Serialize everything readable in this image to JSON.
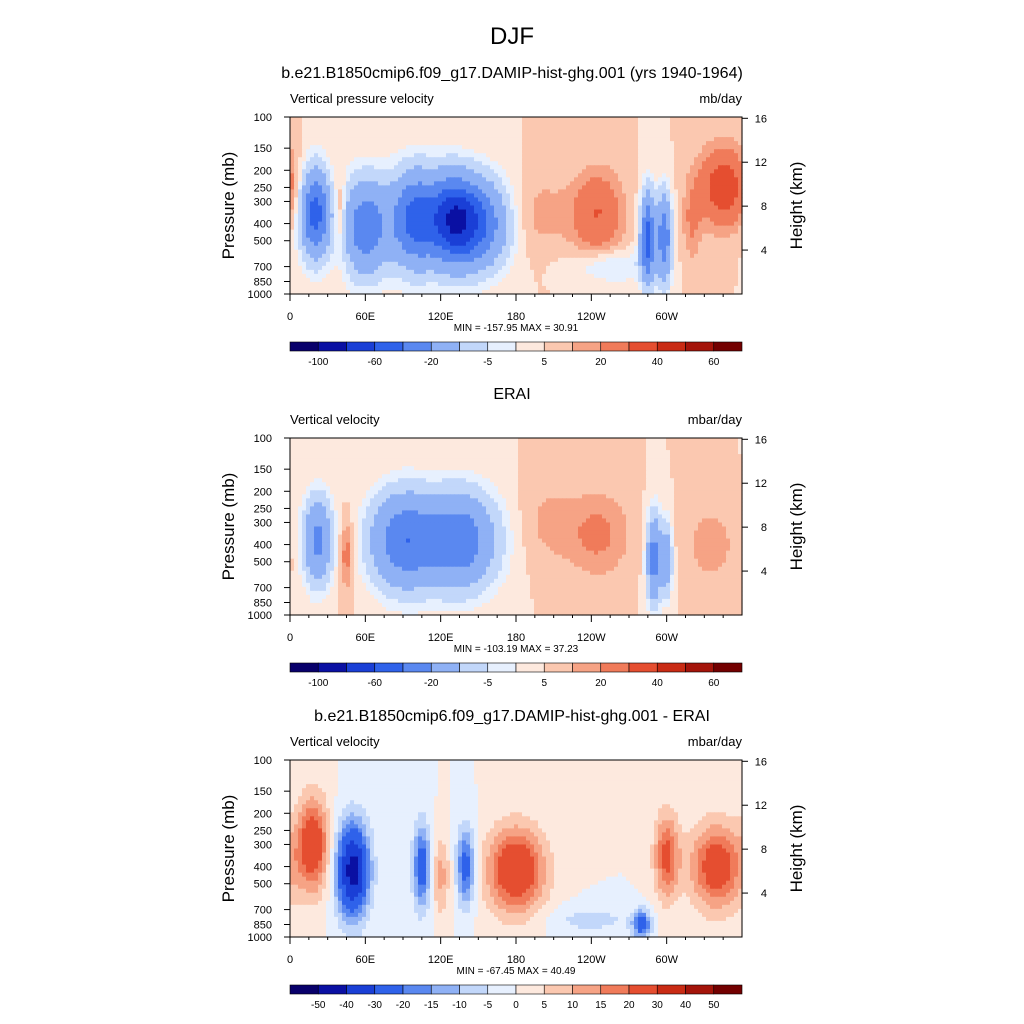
{
  "figure": {
    "title": "DJF"
  },
  "colors": {
    "blue_to_red": [
      "#08006b",
      "#0a10a3",
      "#1a3fd6",
      "#2f62ea",
      "#5a88f0",
      "#8fb1f5",
      "#c2d7fa",
      "#e7f0fe",
      "#fde9de",
      "#fbc8b0",
      "#f6a385",
      "#f07b5a",
      "#e54e30",
      "#c92b14",
      "#a4140a",
      "#730000"
    ]
  },
  "chart_data": [
    {
      "type": "heatmap",
      "title": "b.e21.B1850cmip6.f09_g17.DAMIP-hist-ghg.001 (yrs 1940-1964)",
      "left_label": "Vertical pressure velocity",
      "right_label": "mb/day",
      "ylabel": "Pressure (mb)",
      "y2label": "Height (km)",
      "x_ticks": [
        "0",
        "60E",
        "120E",
        "180",
        "120W",
        "60W"
      ],
      "x_tick_values": [
        0,
        60,
        120,
        180,
        240,
        300
      ],
      "xlim": [
        0,
        360
      ],
      "y_ticks": [
        "100",
        "150",
        "200",
        "250",
        "300",
        "400",
        "500",
        "700",
        "850",
        "1000"
      ],
      "y_tick_values": [
        100,
        150,
        200,
        250,
        300,
        400,
        500,
        700,
        850,
        1000
      ],
      "ylim": [
        1000,
        100
      ],
      "y_log": true,
      "y2_ticks": [
        "4",
        "8",
        "12",
        "16"
      ],
      "y2_tick_values": [
        4,
        8,
        12,
        16
      ],
      "stats": "MIN = -157.95  MAX =  30.91",
      "min": -157.95,
      "max": 30.91,
      "colorbar_labels": [
        "-100",
        "-60",
        "-20",
        "-5",
        "5",
        "20",
        "40",
        "60"
      ],
      "features": [
        {
          "lon": 20,
          "p": 350,
          "w": 8,
          "h": 0.55,
          "v": -70
        },
        {
          "lon": 40,
          "p": 350,
          "w": 3,
          "h": 0.45,
          "v": 15
        },
        {
          "lon": 60,
          "p": 420,
          "w": 12,
          "h": 0.6,
          "v": -55
        },
        {
          "lon": 100,
          "p": 380,
          "w": 14,
          "h": 0.6,
          "v": -70
        },
        {
          "lon": 130,
          "p": 380,
          "w": 12,
          "h": 0.55,
          "v": -75
        },
        {
          "lon": 150,
          "p": 400,
          "w": 16,
          "h": 0.55,
          "v": -60
        },
        {
          "lon": 200,
          "p": 350,
          "w": 18,
          "h": 0.5,
          "v": 7
        },
        {
          "lon": 245,
          "p": 350,
          "w": 14,
          "h": 0.55,
          "v": 20
        },
        {
          "lon": 255,
          "p": 700,
          "w": 22,
          "h": 0.22,
          "v": -12
        },
        {
          "lon": 285,
          "p": 480,
          "w": 4,
          "h": 0.55,
          "v": -70
        },
        {
          "lon": 298,
          "p": 480,
          "w": 4,
          "h": 0.55,
          "v": -55
        },
        {
          "lon": 320,
          "p": 400,
          "w": 5,
          "h": 0.5,
          "v": 10
        },
        {
          "lon": 345,
          "p": 250,
          "w": 14,
          "h": 0.5,
          "v": 28
        }
      ]
    },
    {
      "type": "heatmap",
      "title": "ERAI",
      "left_label": "Vertical velocity",
      "right_label": "mbar/day",
      "ylabel": "Pressure (mb)",
      "y2label": "Height (km)",
      "x_ticks": [
        "0",
        "60E",
        "120E",
        "180",
        "120W",
        "60W"
      ],
      "x_tick_values": [
        0,
        60,
        120,
        180,
        240,
        300
      ],
      "xlim": [
        0,
        360
      ],
      "y_ticks": [
        "100",
        "150",
        "200",
        "250",
        "300",
        "400",
        "500",
        "700",
        "850",
        "1000"
      ],
      "y_tick_values": [
        100,
        150,
        200,
        250,
        300,
        400,
        500,
        700,
        850,
        1000
      ],
      "ylim": [
        1000,
        100
      ],
      "y_log": true,
      "y2_ticks": [
        "4",
        "8",
        "12",
        "16"
      ],
      "y2_tick_values": [
        4,
        8,
        12,
        16
      ],
      "stats": "MIN = -103.19  MAX =  37.23",
      "min": -103.19,
      "max": 37.23,
      "colorbar_labels": [
        "-100",
        "-60",
        "-20",
        "-5",
        "5",
        "20",
        "40",
        "60"
      ],
      "features": [
        {
          "lon": 22,
          "p": 380,
          "w": 8,
          "h": 0.55,
          "v": -45
        },
        {
          "lon": 45,
          "p": 450,
          "w": 4,
          "h": 0.45,
          "v": 15
        },
        {
          "lon": 90,
          "p": 380,
          "w": 18,
          "h": 0.6,
          "v": -55
        },
        {
          "lon": 135,
          "p": 380,
          "w": 20,
          "h": 0.6,
          "v": -55
        },
        {
          "lon": 205,
          "p": 300,
          "w": 15,
          "h": 0.55,
          "v": 6
        },
        {
          "lon": 245,
          "p": 350,
          "w": 18,
          "h": 0.55,
          "v": 12
        },
        {
          "lon": 290,
          "p": 480,
          "w": 4,
          "h": 0.55,
          "v": -50
        },
        {
          "lon": 300,
          "p": 480,
          "w": 3,
          "h": 0.45,
          "v": -35
        },
        {
          "lon": 335,
          "p": 400,
          "w": 15,
          "h": 0.5,
          "v": 8
        }
      ]
    },
    {
      "type": "heatmap",
      "title": "b.e21.B1850cmip6.f09_g17.DAMIP-hist-ghg.001 - ERAI",
      "left_label": "Vertical velocity",
      "right_label": "mbar/day",
      "ylabel": "Pressure (mb)",
      "y2label": "Height (km)",
      "x_ticks": [
        "0",
        "60E",
        "120E",
        "180",
        "120W",
        "60W"
      ],
      "x_tick_values": [
        0,
        60,
        120,
        180,
        240,
        300
      ],
      "xlim": [
        0,
        360
      ],
      "y_ticks": [
        "100",
        "150",
        "200",
        "250",
        "300",
        "400",
        "500",
        "700",
        "850",
        "1000"
      ],
      "y_tick_values": [
        100,
        150,
        200,
        250,
        300,
        400,
        500,
        700,
        850,
        1000
      ],
      "ylim": [
        1000,
        100
      ],
      "y_log": true,
      "y2_ticks": [
        "4",
        "8",
        "12",
        "16"
      ],
      "y2_tick_values": [
        4,
        8,
        12,
        16
      ],
      "stats": "MIN = -67.45  MAX =  40.49",
      "min": -67.45,
      "max": 40.49,
      "colorbar_labels": [
        "-50",
        "-40",
        "-30",
        "-20",
        "-15",
        "-10",
        "-5",
        "0",
        "5",
        "10",
        "15",
        "20",
        "30",
        "40",
        "50"
      ],
      "features": [
        {
          "lon": 18,
          "p": 300,
          "w": 9,
          "h": 0.6,
          "v": 28
        },
        {
          "lon": 50,
          "p": 420,
          "w": 9,
          "h": 0.6,
          "v": -45
        },
        {
          "lon": 105,
          "p": 400,
          "w": 5,
          "h": 0.55,
          "v": -25
        },
        {
          "lon": 120,
          "p": 450,
          "w": 5,
          "h": 0.5,
          "v": 12
        },
        {
          "lon": 140,
          "p": 400,
          "w": 5,
          "h": 0.5,
          "v": -25
        },
        {
          "lon": 180,
          "p": 420,
          "w": 16,
          "h": 0.55,
          "v": 30
        },
        {
          "lon": 240,
          "p": 800,
          "w": 25,
          "h": 0.18,
          "v": -7
        },
        {
          "lon": 280,
          "p": 850,
          "w": 5,
          "h": 0.18,
          "v": -25
        },
        {
          "lon": 300,
          "p": 350,
          "w": 7,
          "h": 0.55,
          "v": 22
        },
        {
          "lon": 340,
          "p": 400,
          "w": 15,
          "h": 0.55,
          "v": 26
        }
      ]
    }
  ]
}
